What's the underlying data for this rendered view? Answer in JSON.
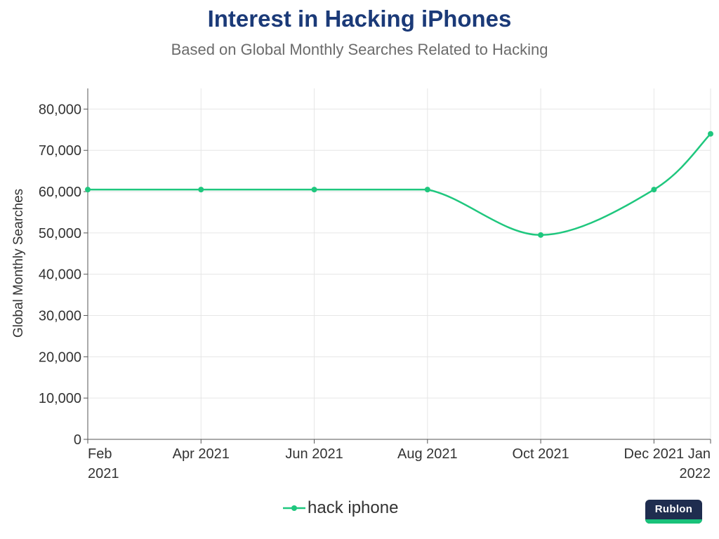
{
  "chart_data": {
    "type": "line",
    "title": "Interest in Hacking iPhones",
    "subtitle": "Based on Global Monthly Searches Related to Hacking",
    "xlabel": "",
    "ylabel": "Global Monthly Searches",
    "ylim": [
      0,
      85000
    ],
    "yticks": [
      {
        "value": 0,
        "label": "0"
      },
      {
        "value": 10000,
        "label": "10,000"
      },
      {
        "value": 20000,
        "label": "20,000"
      },
      {
        "value": 30000,
        "label": "30,000"
      },
      {
        "value": 40000,
        "label": "40,000"
      },
      {
        "value": 50000,
        "label": "50,000"
      },
      {
        "value": 60000,
        "label": "60,000"
      },
      {
        "value": 70000,
        "label": "70,000"
      },
      {
        "value": 80000,
        "label": "80,000"
      }
    ],
    "xlim": [
      "2021-02",
      "2022-01"
    ],
    "xticks": [
      {
        "value": "2021-02",
        "label": [
          "Feb",
          "2021"
        ]
      },
      {
        "value": "2021-04",
        "label": [
          "Apr 2021"
        ]
      },
      {
        "value": "2021-06",
        "label": [
          "Jun 2021"
        ]
      },
      {
        "value": "2021-08",
        "label": [
          "Aug 2021"
        ]
      },
      {
        "value": "2021-10",
        "label": [
          "Oct 2021"
        ]
      },
      {
        "value": "2021-12",
        "label": [
          "Dec 2021"
        ]
      },
      {
        "value": "2022-01",
        "label": [
          "Jan",
          "2022"
        ]
      }
    ],
    "series": [
      {
        "name": "hack iphone",
        "color": "#1fc77e",
        "x": [
          "2021-02",
          "2021-04",
          "2021-06",
          "2021-08",
          "2021-10",
          "2021-12",
          "2022-01"
        ],
        "values": [
          60500,
          60500,
          60500,
          60500,
          49500,
          60500,
          74000
        ]
      }
    ],
    "grid": true,
    "legend": "bottom-center"
  },
  "logo": {
    "text": "Rublon"
  },
  "colors": {
    "title": "#1b3a78",
    "subtitle": "#6b6b6b",
    "axis_text": "#333333",
    "grid": "#e6e6e6",
    "series": "#1fc77e"
  }
}
